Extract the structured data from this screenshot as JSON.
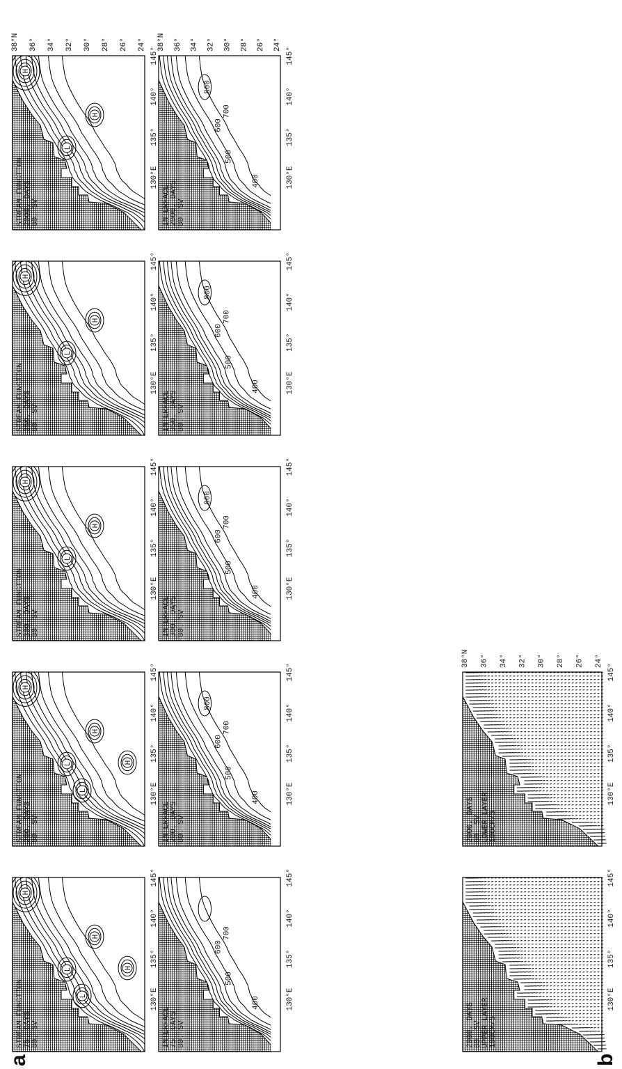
{
  "panel_a": {
    "label": "a",
    "stream_function": [
      {
        "lines": [
          "STREAM FUNCTION",
          "75.  DAYS",
          "80.   SV"
        ],
        "markers": [
          "H",
          "L",
          "H",
          "L",
          "H"
        ]
      },
      {
        "lines": [
          "STREAM FUNCTION",
          "200.  DAYS",
          "80.   SV"
        ],
        "markers": [
          "H",
          "L",
          "H",
          "L",
          "H"
        ]
      },
      {
        "lines": [
          "STREAM FUNCTION",
          "300.  DAYS",
          "80.   SV"
        ],
        "markers": [
          "H",
          "L",
          "H"
        ]
      },
      {
        "lines": [
          "STREAM FUNCTION",
          "350.  DAYS",
          "80.   SV"
        ],
        "markers": [
          "H",
          "L",
          "H"
        ]
      },
      {
        "lines": [
          "STREAM FUNCTION",
          "2000.  DAYS",
          "80.   SV"
        ],
        "markers": [
          "H",
          "L",
          "H"
        ]
      }
    ],
    "interface": [
      {
        "lines": [
          "INTERFACE",
          "75.  DAYS",
          "80.   SV"
        ],
        "contours": [
          "400",
          "500",
          "600",
          "700"
        ]
      },
      {
        "lines": [
          "INTERFACE",
          "200.  DAYS",
          "80.   SV"
        ],
        "contours": [
          "400",
          "500",
          "600",
          "700",
          "800"
        ]
      },
      {
        "lines": [
          "INTERFACE",
          "300.  DAYS",
          "80.   SV"
        ],
        "contours": [
          "400",
          "500",
          "600",
          "700",
          "800"
        ]
      },
      {
        "lines": [
          "INTERFACE",
          "350.  DAYS",
          "80.   SV"
        ],
        "contours": [
          "400",
          "500",
          "600",
          "700",
          "800"
        ]
      },
      {
        "lines": [
          "INTERFACE",
          "2000.  DAYS",
          "80.   SV"
        ],
        "contours": [
          "400",
          "500",
          "600",
          "700",
          "800"
        ]
      }
    ]
  },
  "panel_b": {
    "label": "b",
    "panels": [
      {
        "lines": [
          "2000.  DAYS",
          "80.   SV",
          "UPPER LAYER",
          "100CM/S"
        ]
      },
      {
        "lines": [
          "2000.  DAYS",
          "80.   SV",
          "LOWER LAYER",
          "100CM/S"
        ]
      }
    ]
  },
  "longitude_ticks": [
    "130°E",
    "135°",
    "140°",
    "145°"
  ],
  "latitude_ticks": [
    "38°N",
    "36°",
    "34°",
    "32°",
    "30°",
    "28°",
    "26°",
    "24°"
  ]
}
